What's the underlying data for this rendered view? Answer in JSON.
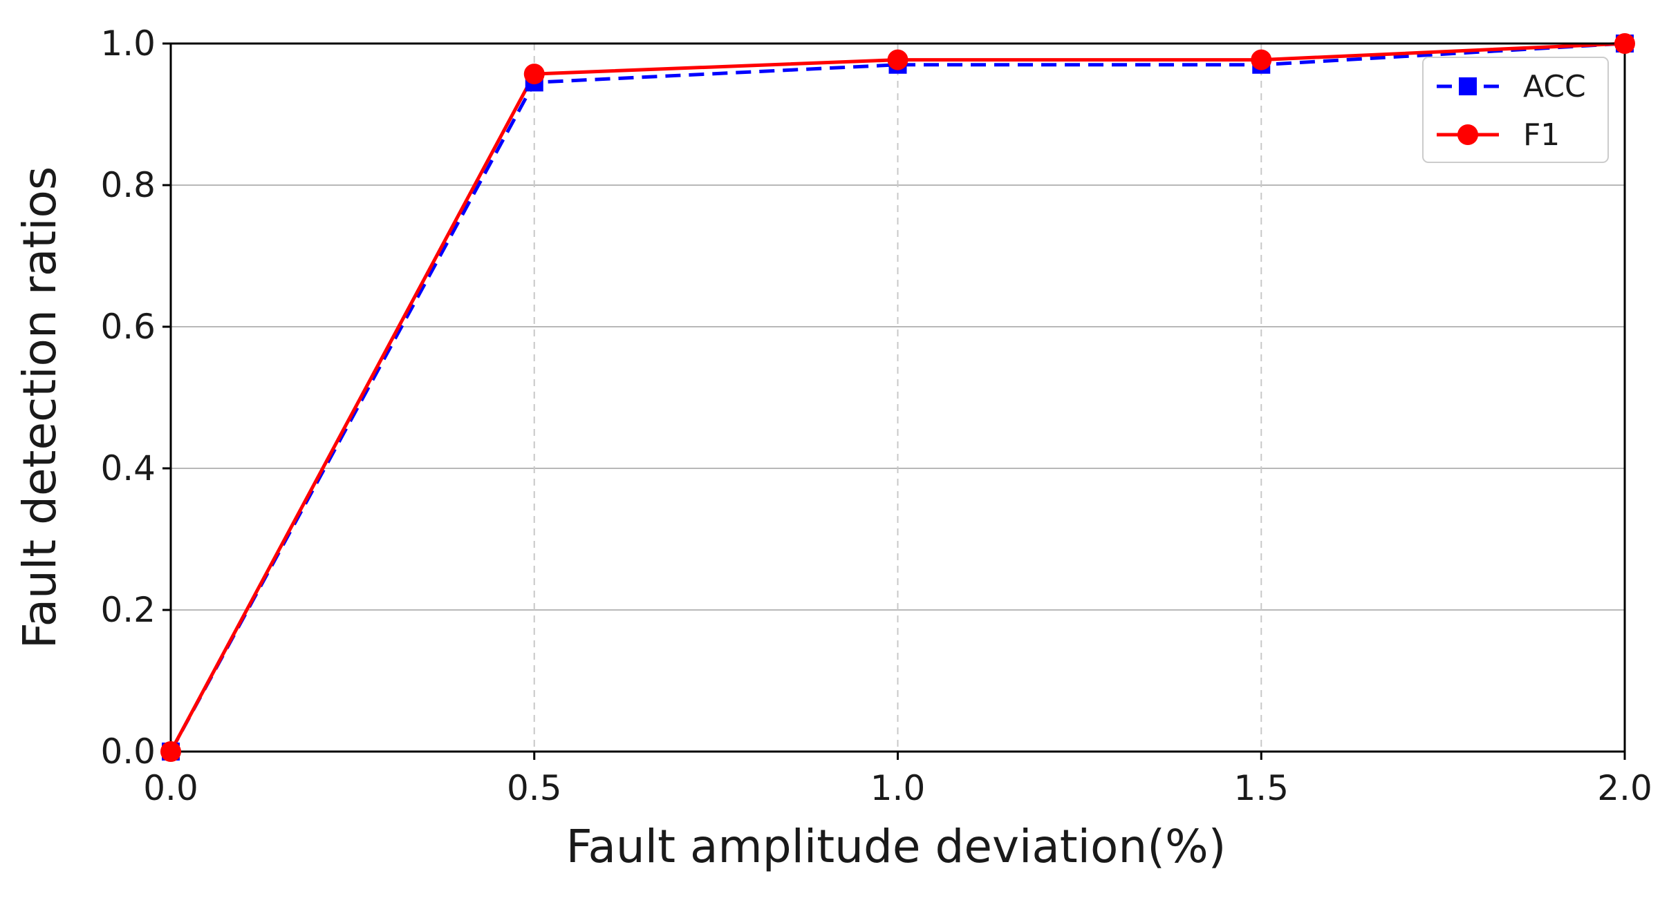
{
  "chart_data": {
    "type": "line",
    "title": "",
    "xlabel": "Fault amplitude deviation(%)",
    "ylabel": "Fault detection ratios",
    "x": [
      0.0,
      0.5,
      1.0,
      1.5,
      2.0
    ],
    "xlim": [
      0.0,
      2.0
    ],
    "ylim": [
      0.0,
      1.0
    ],
    "xticks": [
      0.0,
      0.5,
      1.0,
      1.5,
      2.0
    ],
    "xtick_labels": [
      "0.0",
      "0.5",
      "1.0",
      "1.5",
      "2.0"
    ],
    "yticks": [
      0.0,
      0.2,
      0.4,
      0.6,
      0.8,
      1.0
    ],
    "ytick_labels": [
      "0.0",
      "0.2",
      "0.4",
      "0.6",
      "0.8",
      "1.0"
    ],
    "grid": true,
    "legend_position": "top-right",
    "series": [
      {
        "name": "ACC",
        "values": [
          0.0,
          0.945,
          0.97,
          0.97,
          1.0
        ],
        "color": "#0000ff",
        "line_style": "dashed",
        "marker": "square"
      },
      {
        "name": "F1",
        "values": [
          0.0,
          0.957,
          0.977,
          0.977,
          1.0
        ],
        "color": "#ff0000",
        "line_style": "solid",
        "marker": "circle"
      }
    ]
  }
}
